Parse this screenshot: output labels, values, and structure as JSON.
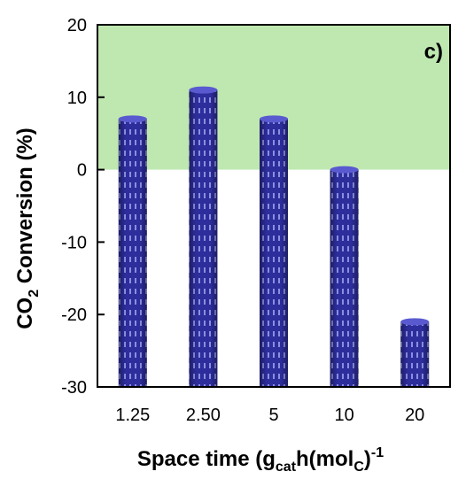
{
  "chart_data": {
    "type": "bar",
    "categories": [
      "1.25",
      "2.50",
      "5",
      "10",
      "20"
    ],
    "values": [
      7,
      11,
      7,
      0,
      -21
    ],
    "xlabel": {
      "main": "Space time (g",
      "sub1": "cat",
      "mid": "h(mol",
      "sub2": "C",
      "close": ")",
      "sup": "-1"
    },
    "ylabel": {
      "prefix": "CO",
      "sub": "2",
      "suffix": " Conversion (%)"
    },
    "panel_label": "c)",
    "ylim": [
      -30,
      20
    ],
    "yticks": [
      20,
      10,
      0,
      -10,
      -20,
      -30
    ],
    "positive_region_color": "#bfe8b0",
    "bar_color": "#2d2d9c",
    "bar_pattern_color": "#8b8fe0",
    "grid": false,
    "legend": "none"
  }
}
